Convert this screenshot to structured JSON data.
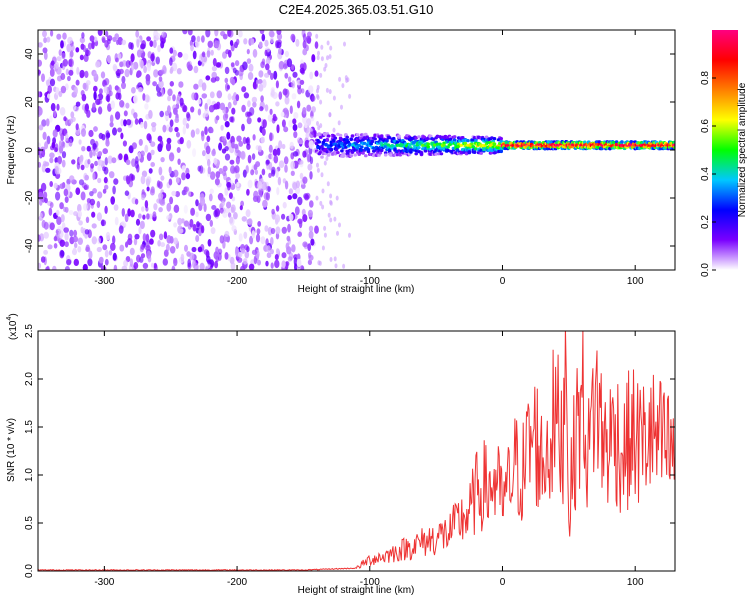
{
  "title": "C2E4.2025.365.03.51.G10",
  "chart_data": [
    {
      "type": "heatmap",
      "title": "C2E4.2025.365.03.51.G10",
      "xlabel": "Height of straight line (km)",
      "ylabel": "Frequency (Hz)",
      "xlim": [
        -350,
        130
      ],
      "ylim": [
        -50,
        50
      ],
      "xticks": [
        -300,
        -200,
        -100,
        0,
        100
      ],
      "yticks": [
        -40,
        -20,
        0,
        20,
        40
      ],
      "colorbar": {
        "label": "Normalized spectral amplitude",
        "range": [
          0.0,
          1.0
        ],
        "ticks": [
          0.0,
          0.2,
          0.4,
          0.6,
          0.8
        ],
        "tick_labels": [
          "0.0",
          "0.2",
          "0.4",
          "0.6",
          "0.8"
        ],
        "colors": [
          "#ffffff",
          "#7a00ff",
          "#0000ff",
          "#00c8ff",
          "#00ff00",
          "#ffff00",
          "#ff7f00",
          "#ff0000",
          "#ff0080"
        ]
      },
      "regions": [
        {
          "x_range": [
            -350,
            -140
          ],
          "description_values": {
            "amplitude_range": [
              0.0,
              0.15
            ]
          }
        },
        {
          "x_range": [
            -140,
            0
          ],
          "center_freq": 2,
          "band_halfwidth": 5,
          "peak_amplitude": 0.6
        },
        {
          "x_range": [
            0,
            130
          ],
          "center_freq": 2,
          "band_halfwidth": 1.5,
          "peak_amplitude": 1.0
        }
      ]
    },
    {
      "type": "line",
      "xlabel": "Height of straight line (km)",
      "ylabel": "SNR (10 * v/v)",
      "y_scale_note": "(x10",
      "y_scale_exp": "4",
      "y_scale_close": ")",
      "xlim": [
        -350,
        130
      ],
      "ylim": [
        0.0,
        2.5
      ],
      "xticks": [
        -300,
        -200,
        -100,
        0,
        100
      ],
      "yticks": [
        0.0,
        0.5,
        1.0,
        1.5,
        2.0,
        2.5
      ],
      "ytick_labels": [
        "0.0",
        "0.5",
        "1.0",
        "1.5",
        "2.0",
        "2.5"
      ],
      "series": [
        {
          "name": "SNR",
          "color": "#ee3333",
          "x": [
            -350,
            -300,
            -250,
            -200,
            -150,
            -110,
            -100,
            -90,
            -80,
            -70,
            -60,
            -50,
            -40,
            -30,
            -25,
            -20,
            -15,
            -10,
            -5,
            0,
            5,
            10,
            15,
            20,
            25,
            30,
            35,
            40,
            45,
            48,
            50,
            55,
            60,
            65,
            70,
            75,
            80,
            85,
            90,
            95,
            100,
            105,
            110,
            115,
            120,
            125,
            130
          ],
          "values": [
            0.01,
            0.01,
            0.01,
            0.01,
            0.01,
            0.03,
            0.12,
            0.15,
            0.2,
            0.25,
            0.3,
            0.35,
            0.4,
            0.55,
            0.6,
            0.8,
            0.9,
            0.85,
            0.95,
            0.7,
            0.9,
            1.1,
            1.0,
            1.3,
            1.4,
            1.1,
            1.35,
            1.6,
            1.3,
            2.5,
            0.6,
            1.4,
            1.8,
            1.2,
            1.9,
            1.4,
            1.3,
            1.5,
            1.2,
            1.35,
            1.4,
            1.3,
            1.45,
            1.35,
            1.3,
            1.25,
            1.2
          ]
        }
      ]
    }
  ]
}
